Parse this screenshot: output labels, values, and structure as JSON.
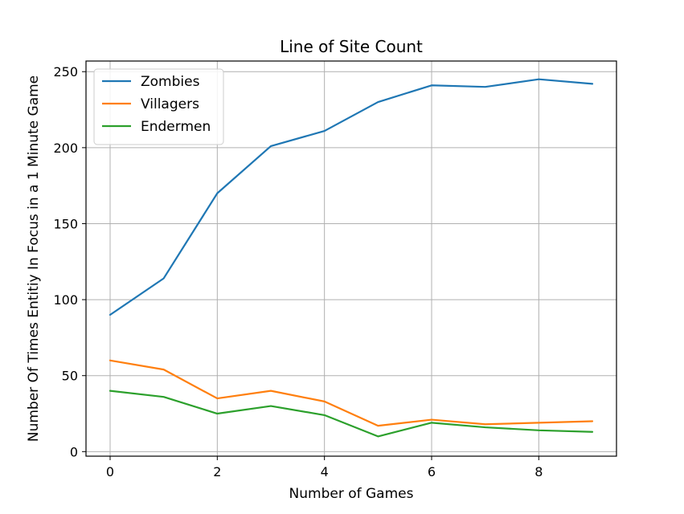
{
  "chart_data": {
    "type": "line",
    "title": "Line of Site Count",
    "xlabel": "Number of Games",
    "ylabel": "Number Of Times Entitiy In Focus in a 1 Minute Game",
    "x": [
      0,
      1,
      2,
      3,
      4,
      5,
      6,
      7,
      8,
      9
    ],
    "xlim": [
      -0.45,
      9.45
    ],
    "ylim": [
      -3,
      257
    ],
    "xticks": [
      0,
      2,
      4,
      6,
      8
    ],
    "yticks": [
      0,
      50,
      100,
      150,
      200,
      250
    ],
    "grid": true,
    "legend_position": "upper-left",
    "series": [
      {
        "name": "Zombies",
        "color": "#1f77b4",
        "values": [
          90,
          114,
          170,
          201,
          211,
          230,
          241,
          240,
          245,
          242
        ]
      },
      {
        "name": "Villagers",
        "color": "#ff7f0e",
        "values": [
          60,
          54,
          35,
          40,
          33,
          17,
          21,
          18,
          19,
          20
        ]
      },
      {
        "name": "Endermen",
        "color": "#2ca02c",
        "values": [
          40,
          36,
          25,
          30,
          24,
          10,
          19,
          16,
          14,
          13
        ]
      }
    ]
  }
}
